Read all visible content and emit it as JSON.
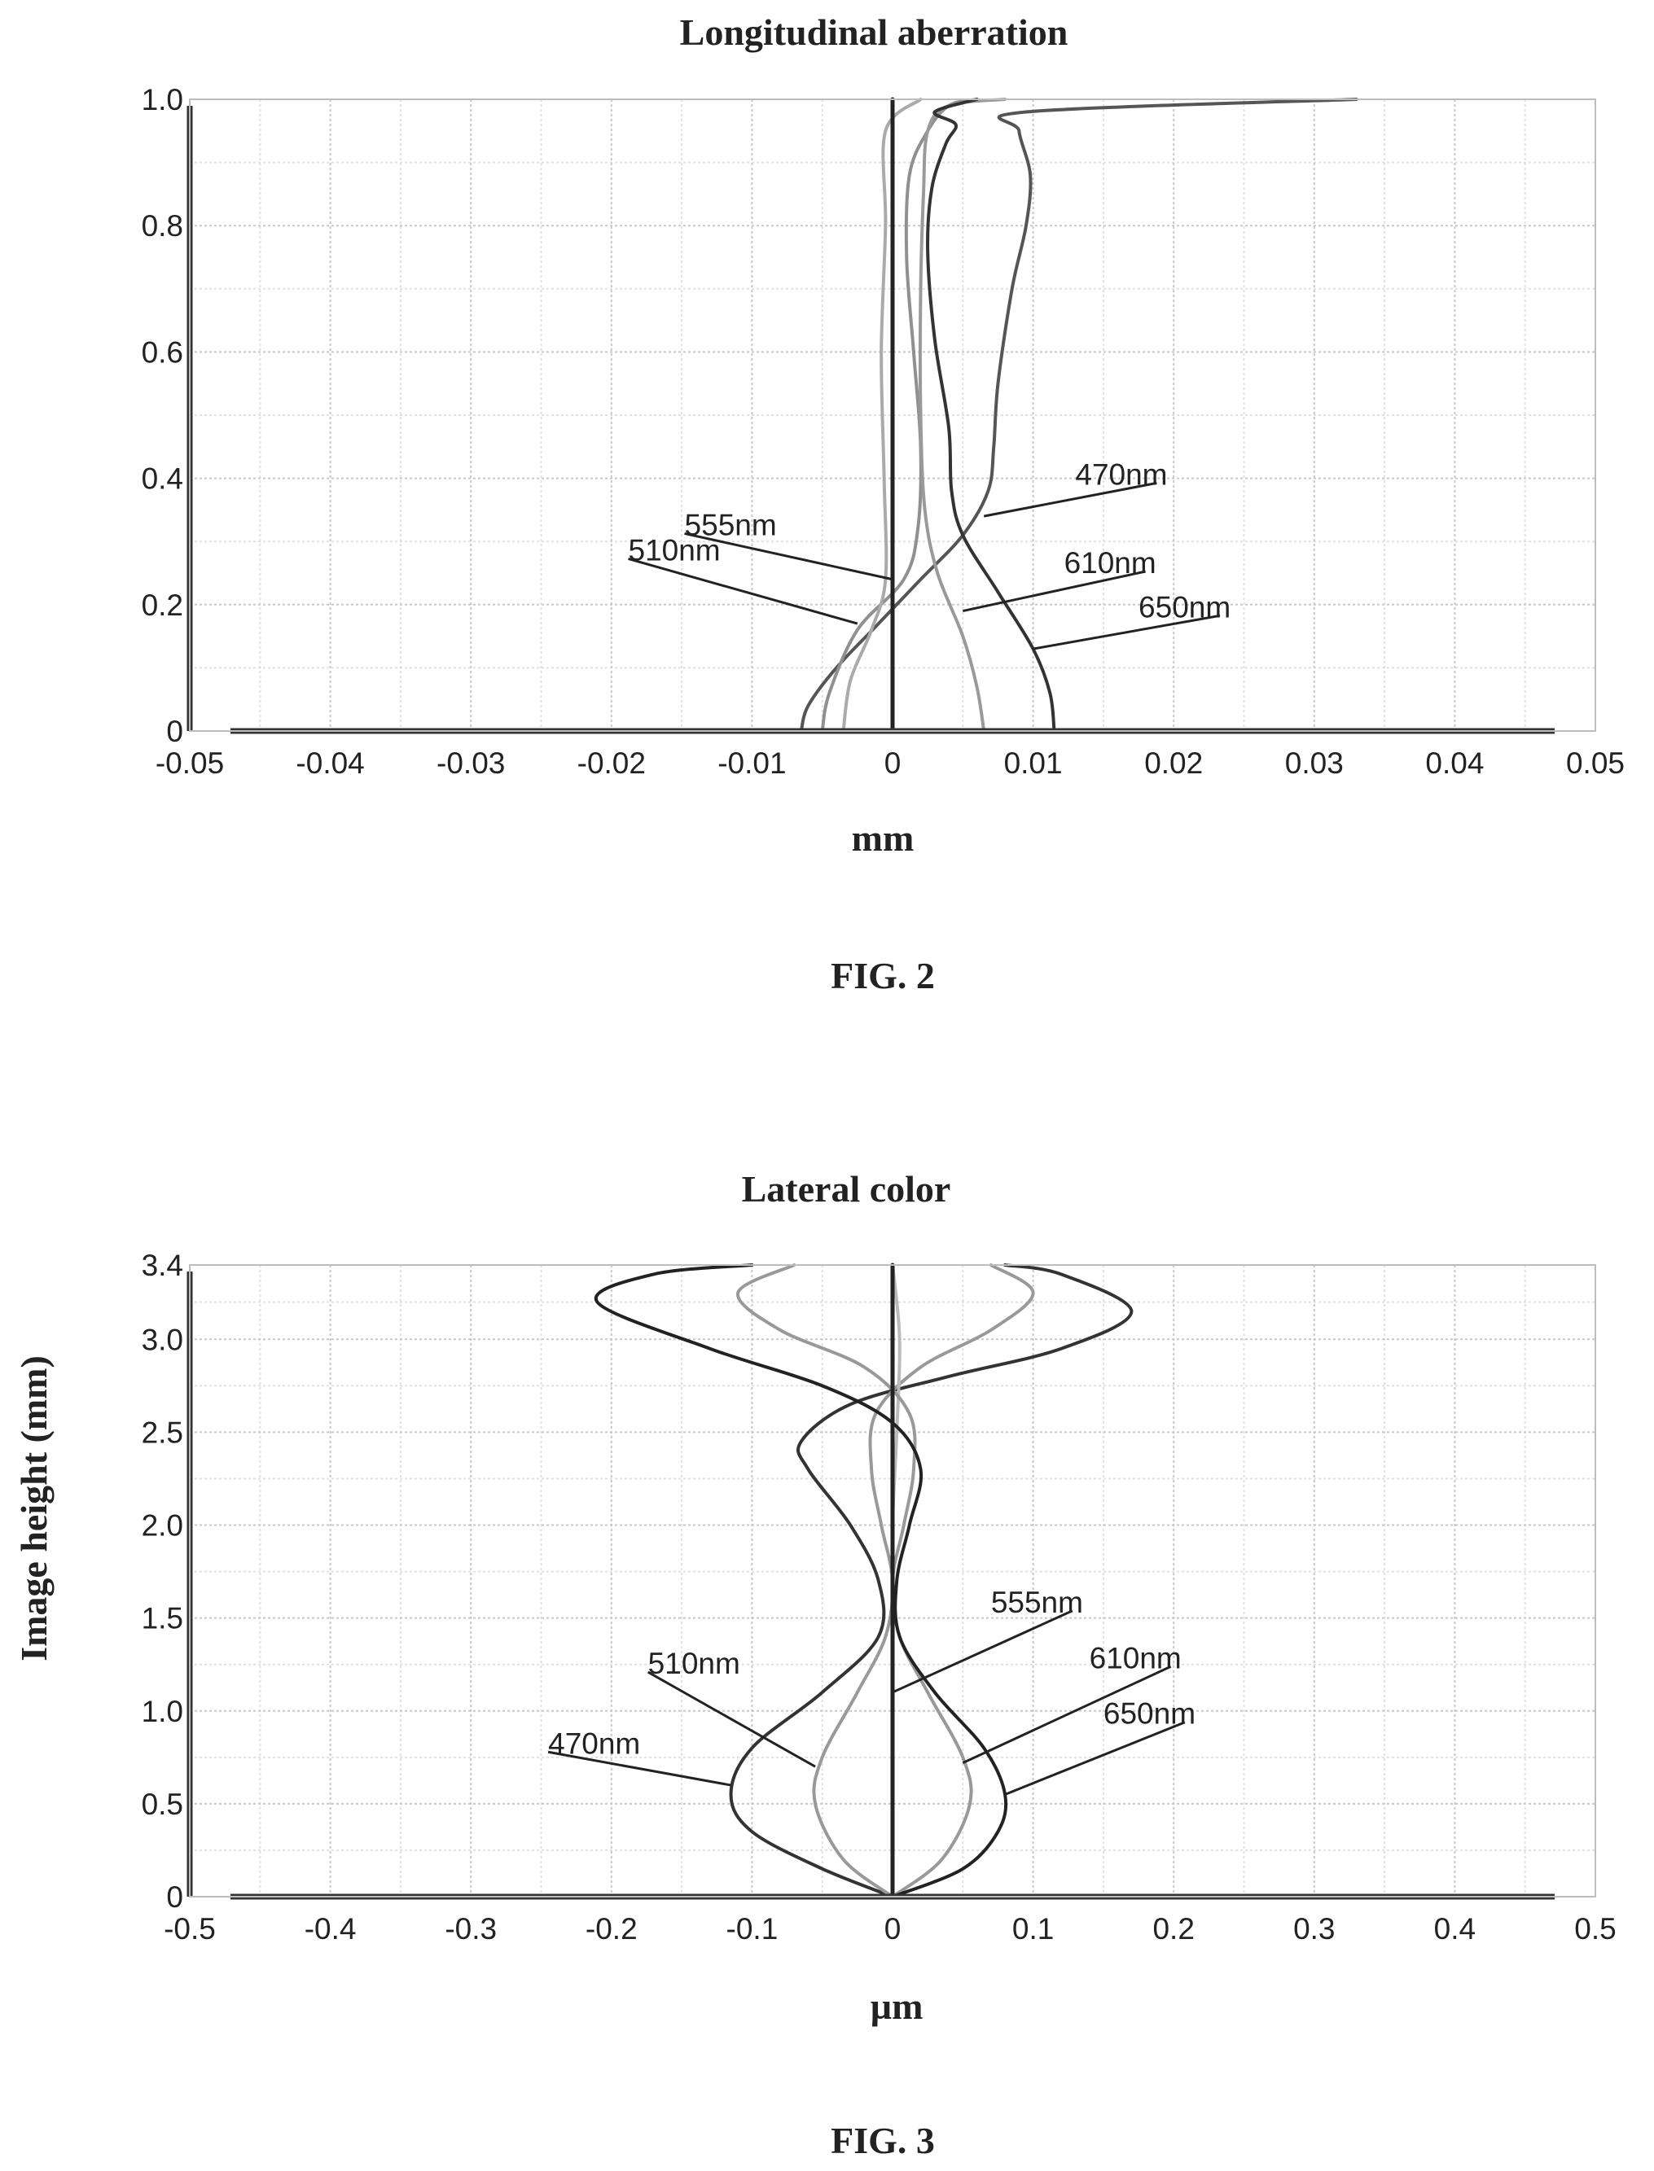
{
  "figures": [
    {
      "caption": "FIG. 2"
    },
    {
      "caption": "FIG. 3"
    }
  ],
  "chart_data": [
    {
      "type": "line",
      "title": "Longitudinal aberration",
      "xlabel": "mm",
      "ylabel": "",
      "xlim": [
        -0.05,
        0.05
      ],
      "ylim": [
        0,
        1.0
      ],
      "x_ticks": [
        "-0.05",
        "-0.04",
        "-0.03",
        "-0.02",
        "-0.01",
        "0",
        "0.01",
        "0.02",
        "0.03",
        "0.04",
        "0.05"
      ],
      "y_ticks": [
        "0",
        "0.2",
        "0.4",
        "0.6",
        "0.8",
        "1.0"
      ],
      "grid": true,
      "series": [
        {
          "name": "470nm",
          "color": "#555555",
          "points": [
            [
              -0.0065,
              0
            ],
            [
              -0.006,
              0.04
            ],
            [
              -0.004,
              0.1
            ],
            [
              -0.001,
              0.17
            ],
            [
              0.002,
              0.24
            ],
            [
              0.005,
              0.31
            ],
            [
              0.0068,
              0.38
            ],
            [
              0.0072,
              0.45
            ],
            [
              0.0075,
              0.55
            ],
            [
              0.0085,
              0.7
            ],
            [
              0.0095,
              0.8
            ],
            [
              0.0098,
              0.88
            ],
            [
              0.009,
              0.95
            ],
            [
              0.0095,
              0.98
            ],
            [
              0.033,
              1.0
            ]
          ]
        },
        {
          "name": "510nm",
          "color": "#909090",
          "points": [
            [
              -0.005,
              0
            ],
            [
              -0.0045,
              0.06
            ],
            [
              -0.0025,
              0.16
            ],
            [
              0.0008,
              0.24
            ],
            [
              0.0018,
              0.32
            ],
            [
              0.002,
              0.45
            ],
            [
              0.0015,
              0.6
            ],
            [
              0.001,
              0.75
            ],
            [
              0.0012,
              0.88
            ],
            [
              0.0025,
              0.95
            ],
            [
              0.004,
              0.99
            ],
            [
              0.006,
              1.0
            ]
          ]
        },
        {
          "name": "555nm",
          "color": "#aaaaaa",
          "points": [
            [
              -0.0035,
              0
            ],
            [
              -0.003,
              0.08
            ],
            [
              -0.0015,
              0.16
            ],
            [
              -0.0005,
              0.24
            ],
            [
              -0.0006,
              0.4
            ],
            [
              -0.0008,
              0.6
            ],
            [
              -0.0005,
              0.8
            ],
            [
              -0.0005,
              0.95
            ],
            [
              0.002,
              1.0
            ]
          ]
        },
        {
          "name": "610nm",
          "color": "#9a9a9a",
          "points": [
            [
              0.0065,
              0
            ],
            [
              0.006,
              0.07
            ],
            [
              0.005,
              0.15
            ],
            [
              0.0032,
              0.25
            ],
            [
              0.0023,
              0.35
            ],
            [
              0.002,
              0.5
            ],
            [
              0.002,
              0.7
            ],
            [
              0.0022,
              0.85
            ],
            [
              0.0025,
              0.95
            ],
            [
              0.004,
              0.99
            ],
            [
              0.008,
              1.0
            ]
          ]
        },
        {
          "name": "650nm",
          "color": "#333333",
          "points": [
            [
              0.0115,
              0
            ],
            [
              0.0112,
              0.06
            ],
            [
              0.01,
              0.13
            ],
            [
              0.0075,
              0.22
            ],
            [
              0.005,
              0.31
            ],
            [
              0.0042,
              0.38
            ],
            [
              0.004,
              0.48
            ],
            [
              0.003,
              0.62
            ],
            [
              0.0025,
              0.76
            ],
            [
              0.0028,
              0.86
            ],
            [
              0.0038,
              0.93
            ],
            [
              0.0045,
              0.96
            ],
            [
              0.003,
              0.98
            ],
            [
              0.006,
              1.0
            ]
          ]
        },
        {
          "name": "",
          "color": "#222222",
          "points": [
            [
              0,
              0
            ],
            [
              0,
              1.0
            ]
          ]
        }
      ],
      "annotations": [
        {
          "text": "470nm",
          "label_at": [
            0.013,
            0.39
          ],
          "target": [
            0.0065,
            0.34
          ]
        },
        {
          "text": "555nm",
          "label_at": [
            -0.0148,
            0.31
          ],
          "target": [
            0,
            0.24
          ]
        },
        {
          "text": "510nm",
          "label_at": [
            -0.0188,
            0.27
          ],
          "target": [
            -0.0025,
            0.17
          ]
        },
        {
          "text": "610nm",
          "label_at": [
            0.0122,
            0.25
          ],
          "target": [
            0.005,
            0.19
          ]
        },
        {
          "text": "650nm",
          "label_at": [
            0.0175,
            0.18
          ],
          "target": [
            0.01,
            0.13
          ]
        }
      ]
    },
    {
      "type": "line",
      "title": "Lateral color",
      "xlabel": "µm",
      "ylabel": "Image height (mm)",
      "xlim": [
        -0.5,
        0.5
      ],
      "ylim": [
        0,
        3.4
      ],
      "x_ticks": [
        "-0.5",
        "-0.4",
        "-0.3",
        "-0.2",
        "-0.1",
        "0",
        "0.1",
        "0.2",
        "0.3",
        "0.4",
        "0.5"
      ],
      "y_ticks": [
        "0",
        "0.5",
        "1.0",
        "1.5",
        "2.0",
        "2.5",
        "3.0",
        "3.4"
      ],
      "grid": true,
      "series": [
        {
          "name": "470nm",
          "color": "#333333",
          "points": [
            [
              0,
              0
            ],
            [
              -0.05,
              0.15
            ],
            [
              -0.1,
              0.35
            ],
            [
              -0.115,
              0.55
            ],
            [
              -0.1,
              0.8
            ],
            [
              -0.05,
              1.1
            ],
            [
              -0.01,
              1.4
            ],
            [
              -0.01,
              1.7
            ],
            [
              -0.03,
              2.0
            ],
            [
              -0.06,
              2.3
            ],
            [
              -0.065,
              2.45
            ],
            [
              -0.03,
              2.65
            ],
            [
              0.04,
              2.8
            ],
            [
              0.12,
              2.95
            ],
            [
              0.17,
              3.15
            ],
            [
              0.12,
              3.35
            ],
            [
              0.08,
              3.4
            ]
          ]
        },
        {
          "name": "510nm",
          "color": "#999999",
          "points": [
            [
              0,
              0
            ],
            [
              -0.035,
              0.2
            ],
            [
              -0.055,
              0.5
            ],
            [
              -0.05,
              0.75
            ],
            [
              -0.025,
              1.1
            ],
            [
              -0.005,
              1.4
            ],
            [
              0,
              1.7
            ],
            [
              -0.008,
              2.0
            ],
            [
              -0.015,
              2.3
            ],
            [
              -0.012,
              2.6
            ],
            [
              0.02,
              2.85
            ],
            [
              0.07,
              3.05
            ],
            [
              0.1,
              3.25
            ],
            [
              0.07,
              3.4
            ]
          ]
        },
        {
          "name": "555nm",
          "color": "#bbbbbb",
          "points": [
            [
              0,
              0
            ],
            [
              0,
              1.0
            ],
            [
              0,
              1.5
            ],
            [
              0,
              2.0
            ],
            [
              0.003,
              2.5
            ],
            [
              0.005,
              3.0
            ],
            [
              0,
              3.4
            ]
          ]
        },
        {
          "name": "610nm",
          "color": "#999999",
          "points": [
            [
              0,
              0
            ],
            [
              0.035,
              0.2
            ],
            [
              0.055,
              0.5
            ],
            [
              0.05,
              0.75
            ],
            [
              0.025,
              1.1
            ],
            [
              0.005,
              1.4
            ],
            [
              0,
              1.7
            ],
            [
              0.008,
              2.0
            ],
            [
              0.015,
              2.3
            ],
            [
              0.012,
              2.6
            ],
            [
              -0.02,
              2.85
            ],
            [
              -0.08,
              3.05
            ],
            [
              -0.11,
              3.25
            ],
            [
              -0.07,
              3.4
            ]
          ]
        },
        {
          "name": "650nm",
          "color": "#222222",
          "points": [
            [
              0,
              0
            ],
            [
              0.05,
              0.15
            ],
            [
              0.075,
              0.35
            ],
            [
              0.08,
              0.55
            ],
            [
              0.065,
              0.8
            ],
            [
              0.03,
              1.1
            ],
            [
              0.005,
              1.4
            ],
            [
              0.003,
              1.7
            ],
            [
              0.012,
              2.0
            ],
            [
              0.02,
              2.3
            ],
            [
              0,
              2.55
            ],
            [
              -0.05,
              2.75
            ],
            [
              -0.13,
              2.95
            ],
            [
              -0.21,
              3.2
            ],
            [
              -0.17,
              3.35
            ],
            [
              -0.1,
              3.4
            ]
          ]
        },
        {
          "name": "",
          "color": "#222222",
          "points": [
            [
              0,
              0
            ],
            [
              0,
              3.4
            ]
          ]
        }
      ],
      "annotations": [
        {
          "text": "555nm",
          "label_at": [
            0.07,
            1.53
          ],
          "target": [
            0,
            1.1
          ]
        },
        {
          "text": "610nm",
          "label_at": [
            0.14,
            1.23
          ],
          "target": [
            0.05,
            0.72
          ]
        },
        {
          "text": "650nm",
          "label_at": [
            0.15,
            0.93
          ],
          "target": [
            0.08,
            0.55
          ]
        },
        {
          "text": "510nm",
          "label_at": [
            -0.174,
            1.2
          ],
          "target": [
            -0.055,
            0.7
          ]
        },
        {
          "text": "470nm",
          "label_at": [
            -0.245,
            0.77
          ],
          "target": [
            -0.115,
            0.6
          ]
        }
      ]
    }
  ]
}
